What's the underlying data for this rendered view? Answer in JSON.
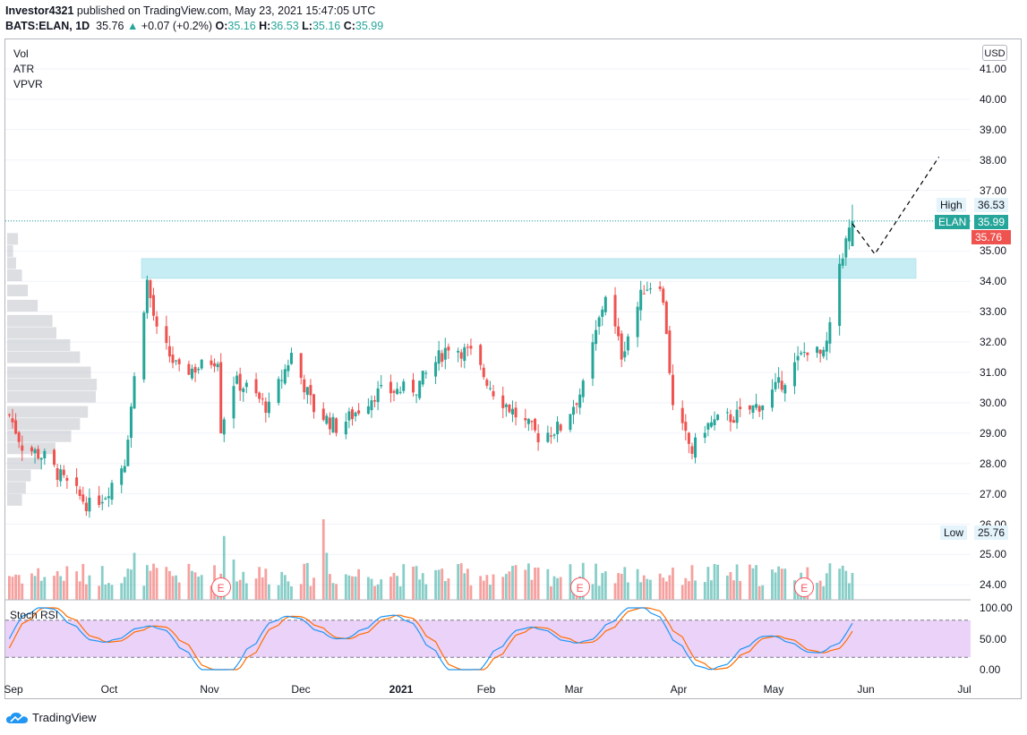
{
  "header": {
    "publisher": "Investor4321",
    "published_text": " published on TradingView.com, May 23, 2021 15:47:05 UTC",
    "symbol": "BATS:ELAN, 1D",
    "last": "35.76",
    "change_arrow": "▲",
    "change": "+0.07 (+0.2%)",
    "o_label": "O:",
    "o_value": "35.16",
    "h_label": "H:",
    "h_value": "36.53",
    "l_label": "L:",
    "l_value": "35.16",
    "c_label": "C:",
    "c_value": "35.99"
  },
  "indicators": [
    "Vol",
    "ATR",
    "VPVR"
  ],
  "currency": "USD",
  "price_tags": {
    "high_label": "High",
    "high_value": "36.53",
    "symbol_label": "ELAN",
    "symbol_value": "35.99",
    "close_value": "35.76",
    "low_label": "Low",
    "low_value": "25.76"
  },
  "rsi_label": "Stoch RSI",
  "earnings_label": "E",
  "brand": "TradingView",
  "colors": {
    "up": "#26a69a",
    "down": "#ef5350",
    "zone": "#bdebf2",
    "rsi_band": "#e9cdf7",
    "k_line": "#2196f3",
    "d_line": "#ff6d00"
  },
  "chart_data": {
    "type": "candlestick",
    "title": "BATS:ELAN, 1D",
    "price_axis": {
      "ticks": [
        "24.00",
        "25.00",
        "26.00",
        "27.00",
        "28.00",
        "29.00",
        "30.00",
        "31.00",
        "32.00",
        "33.00",
        "34.00",
        "35.00",
        "36.00",
        "37.00",
        "38.00",
        "39.00",
        "40.00",
        "41.00"
      ],
      "range": [
        23.6,
        41.6
      ]
    },
    "time_axis": {
      "ticks": [
        "Sep",
        "Oct",
        "Nov",
        "Dec",
        "2021",
        "Feb",
        "Mar",
        "Apr",
        "May",
        "Jun",
        "Jul"
      ]
    },
    "resistance_zone": [
      34.1,
      34.75
    ],
    "projection": {
      "points": [
        [
          "2021-05-21",
          35.9
        ],
        [
          "2021-05-28",
          34.9
        ],
        [
          "2021-06-17",
          38.1
        ]
      ],
      "style": "dashed"
    },
    "earnings_dates": [
      "2020-11-05",
      "2021-02-25",
      "2021-05-06"
    ],
    "stoch_rsi": {
      "ticks": [
        "100.00",
        "50.00",
        "0.00"
      ],
      "upper_band": 80,
      "lower_band": 20
    },
    "anchors": [
      [
        "2020-08-31",
        29.6
      ],
      [
        "2020-09-04",
        28.6
      ],
      [
        "2020-09-11",
        28.2
      ],
      [
        "2020-09-18",
        27.3
      ],
      [
        "2020-09-25",
        26.6
      ],
      [
        "2020-09-30",
        27.0
      ],
      [
        "2020-10-06",
        28.1
      ],
      [
        "2020-10-09",
        30.8
      ],
      [
        "2020-10-13",
        34.0
      ],
      [
        "2020-10-16",
        32.3
      ],
      [
        "2020-10-23",
        31.0
      ],
      [
        "2020-10-30",
        31.2
      ],
      [
        "2020-11-04",
        31.5
      ],
      [
        "2020-11-05",
        29.2
      ],
      [
        "2020-11-09",
        30.7
      ],
      [
        "2020-11-13",
        30.5
      ],
      [
        "2020-11-20",
        29.8
      ],
      [
        "2020-11-27",
        31.6
      ],
      [
        "2020-12-04",
        29.8
      ],
      [
        "2020-12-11",
        29.2
      ],
      [
        "2020-12-15",
        29.5
      ],
      [
        "2020-12-23",
        30.3
      ],
      [
        "2021-01-05",
        30.5
      ],
      [
        "2021-01-15",
        31.9
      ],
      [
        "2021-01-22",
        31.6
      ],
      [
        "2021-01-29",
        30.4
      ],
      [
        "2021-02-05",
        29.6
      ],
      [
        "2021-02-12",
        28.9
      ],
      [
        "2021-02-19",
        29.2
      ],
      [
        "2021-02-26",
        30.5
      ],
      [
        "2021-03-05",
        33.6
      ],
      [
        "2021-03-10",
        31.6
      ],
      [
        "2021-03-17",
        33.8
      ],
      [
        "2021-03-22",
        34.0
      ],
      [
        "2021-03-24",
        32.4
      ],
      [
        "2021-03-26",
        29.8
      ],
      [
        "2021-04-01",
        28.4
      ],
      [
        "2021-04-05",
        29.2
      ],
      [
        "2021-04-09",
        29.4
      ],
      [
        "2021-04-16",
        29.6
      ],
      [
        "2021-04-23",
        30.0
      ],
      [
        "2021-04-30",
        30.8
      ],
      [
        "2021-05-07",
        31.8
      ],
      [
        "2021-05-12",
        31.5
      ],
      [
        "2021-05-14",
        32.4
      ],
      [
        "2021-05-17",
        34.6
      ],
      [
        "2021-05-19",
        35.3
      ],
      [
        "2021-05-21",
        35.99
      ]
    ]
  }
}
